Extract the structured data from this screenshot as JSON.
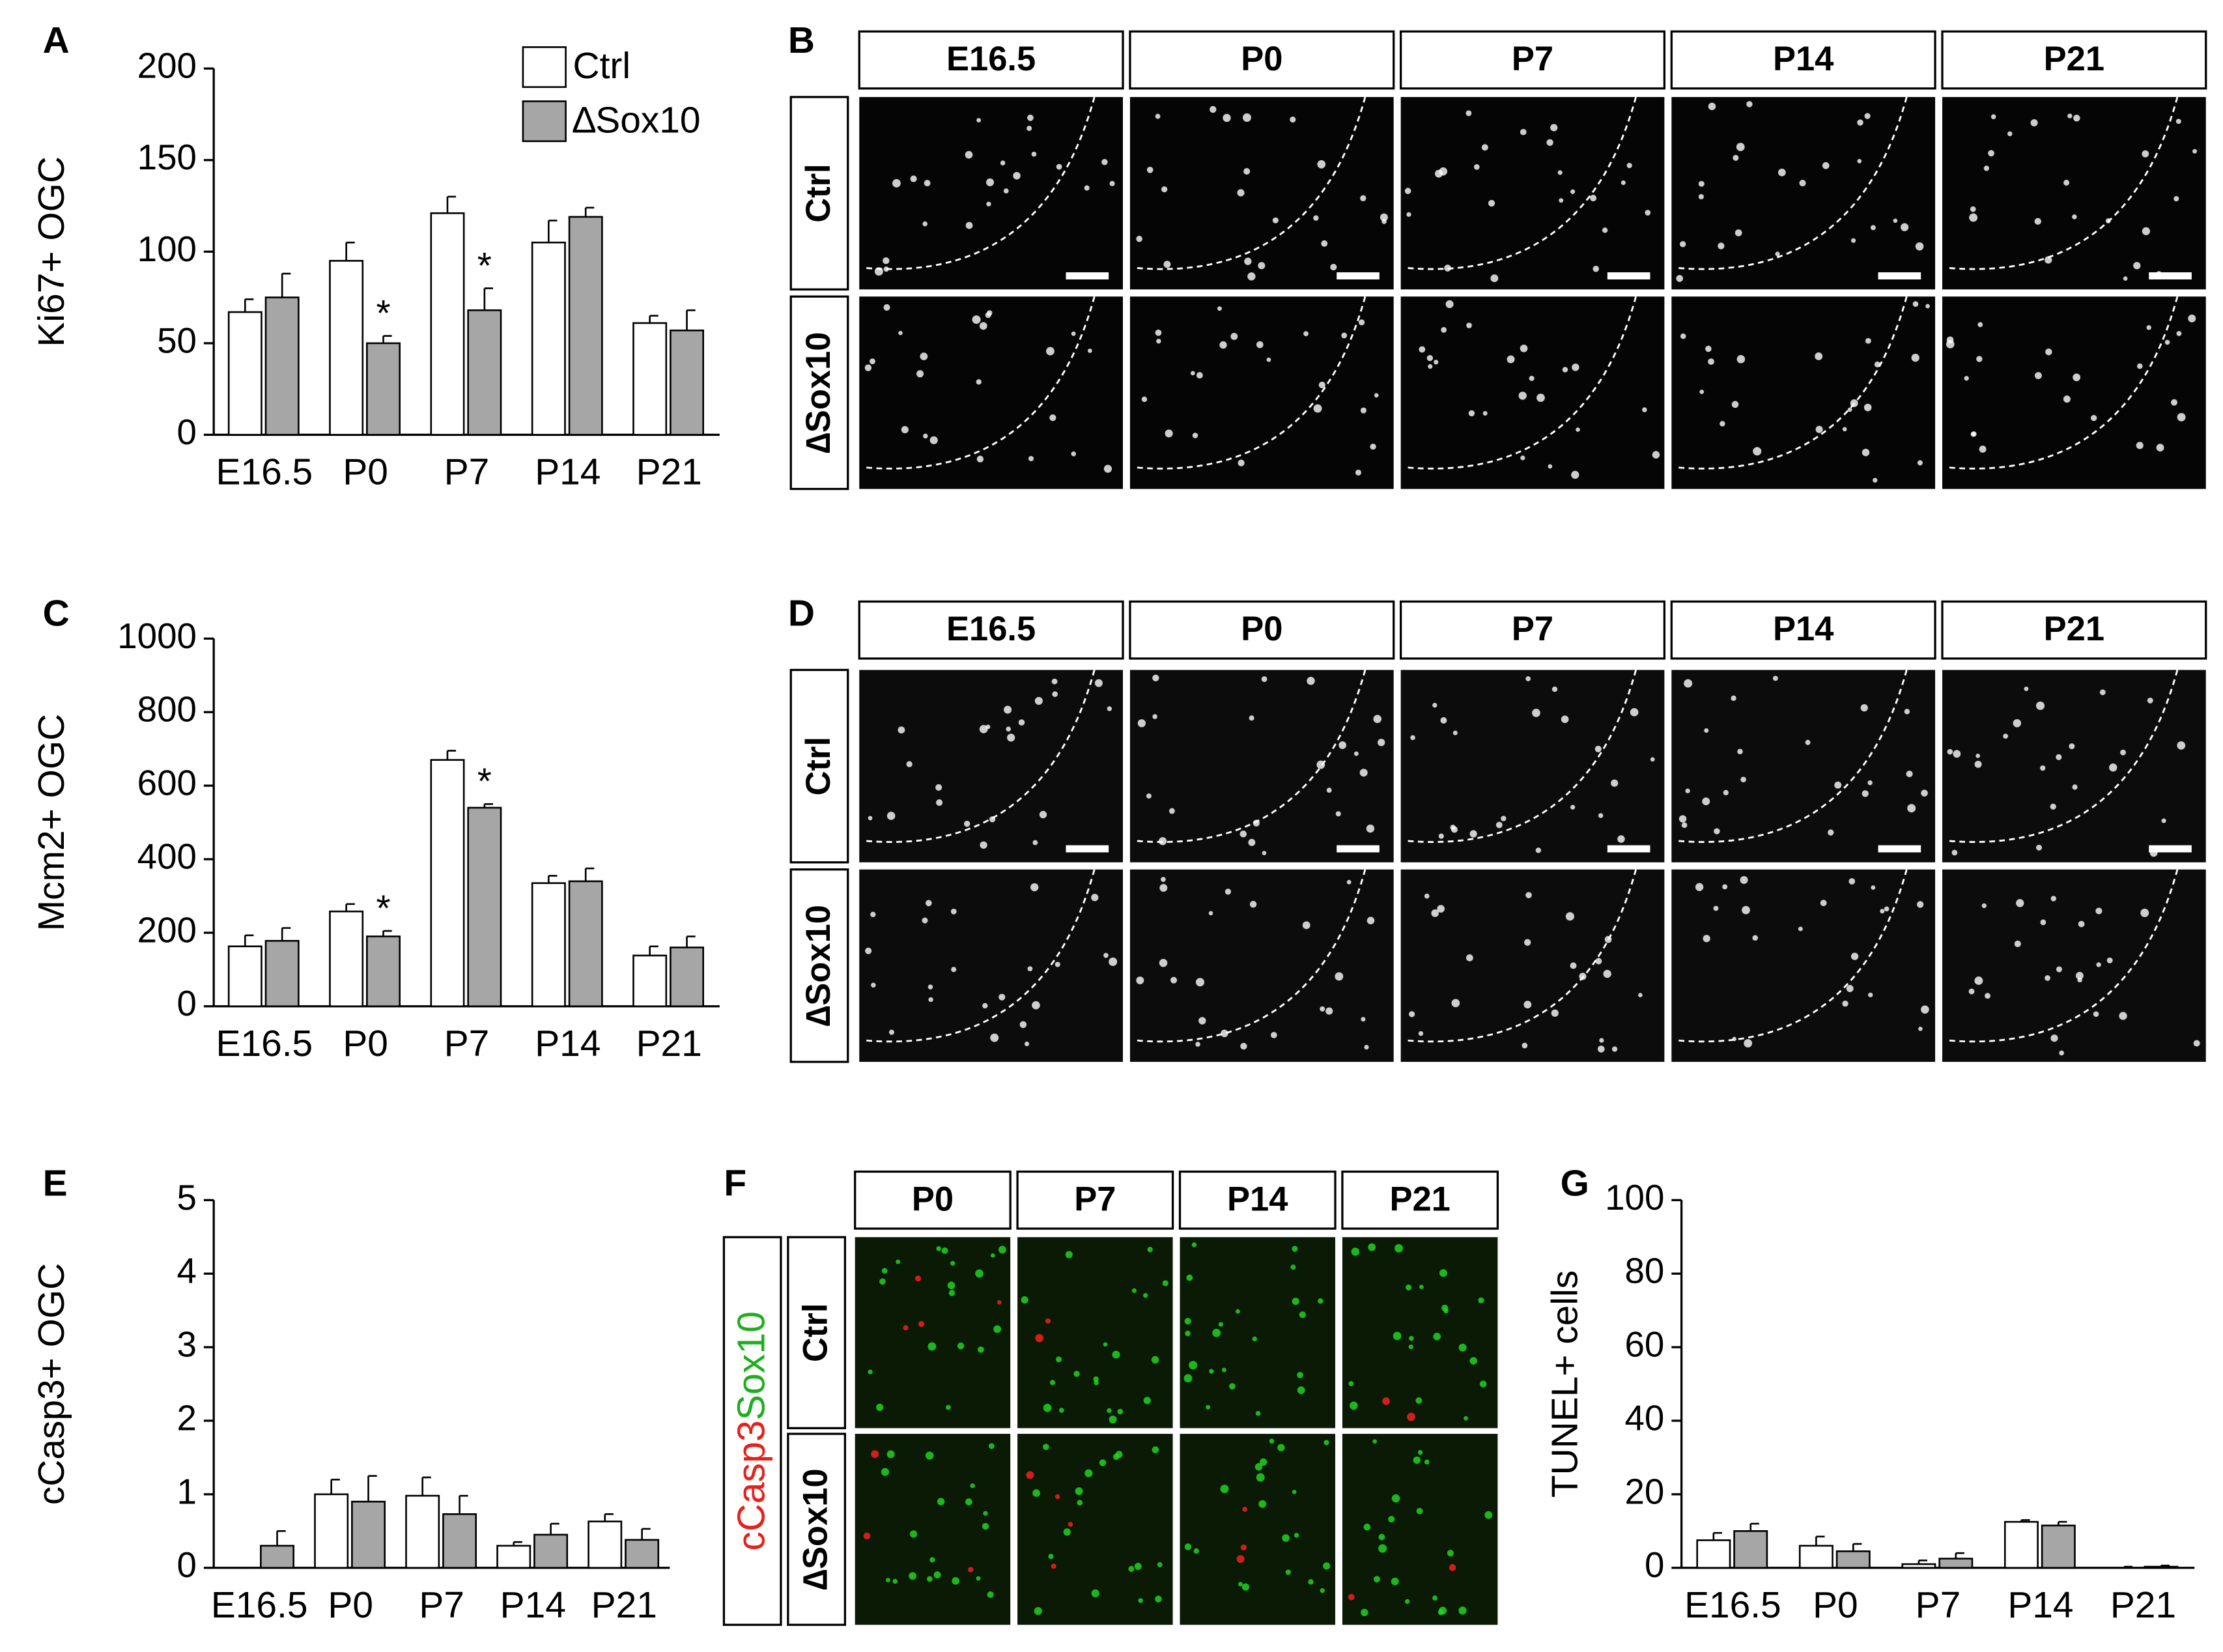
{
  "chart_data": [
    {
      "type": "bar",
      "panel_label": "A",
      "y_label": "Ki67+ OGC",
      "legend": true,
      "categories": [
        "E16.5",
        "P0",
        "P7",
        "P14",
        "P21"
      ],
      "ylim": [
        0,
        200
      ],
      "yticks": [
        0,
        50,
        100,
        150,
        200
      ],
      "series": [
        {
          "name": "Ctrl",
          "color": "#ffffff",
          "values": [
            67,
            95,
            121,
            105,
            61
          ],
          "errors": [
            7,
            10,
            9,
            12,
            4
          ],
          "significance": [
            null,
            null,
            null,
            null,
            null
          ]
        },
        {
          "name": "∆Sox10",
          "color": "#a6a6a6",
          "values": [
            75,
            50,
            68,
            119,
            57
          ],
          "errors": [
            13,
            4,
            12,
            5,
            11
          ],
          "significance": [
            null,
            "*",
            "*",
            null,
            null
          ]
        }
      ]
    },
    {
      "type": "bar",
      "panel_label": "C",
      "y_label": "Mcm2+ OGC",
      "legend": false,
      "categories": [
        "E16.5",
        "P0",
        "P7",
        "P14",
        "P21"
      ],
      "ylim": [
        0,
        1000
      ],
      "yticks": [
        0,
        200,
        400,
        600,
        800,
        1000
      ],
      "series": [
        {
          "name": "Ctrl",
          "color": "#ffffff",
          "values": [
            163,
            258,
            670,
            335,
            138
          ],
          "errors": [
            30,
            20,
            25,
            20,
            25
          ],
          "significance": [
            null,
            null,
            null,
            null,
            null
          ]
        },
        {
          "name": "∆Sox10",
          "color": "#a6a6a6",
          "values": [
            178,
            190,
            540,
            340,
            160
          ],
          "errors": [
            35,
            15,
            10,
            35,
            30
          ],
          "significance": [
            null,
            "*",
            "*",
            null,
            null
          ]
        }
      ]
    },
    {
      "type": "bar",
      "panel_label": "E",
      "y_label": "cCasp3+ OGC",
      "legend": false,
      "categories": [
        "E16.5",
        "P0",
        "P7",
        "P14",
        "P21"
      ],
      "ylim": [
        0,
        5
      ],
      "yticks": [
        0,
        1,
        2,
        3,
        4,
        5
      ],
      "series": [
        {
          "name": "Ctrl",
          "color": "#ffffff",
          "values": [
            0,
            1.0,
            0.98,
            0.3,
            0.63
          ],
          "errors": [
            0,
            0.2,
            0.25,
            0.05,
            0.1
          ],
          "significance": [
            null,
            null,
            null,
            null,
            null
          ]
        },
        {
          "name": "∆Sox10",
          "color": "#a6a6a6",
          "values": [
            0.3,
            0.9,
            0.73,
            0.45,
            0.38
          ],
          "errors": [
            0.2,
            0.35,
            0.25,
            0.15,
            0.15
          ],
          "significance": [
            null,
            null,
            null,
            null,
            null
          ]
        }
      ]
    },
    {
      "type": "bar",
      "panel_label": "G",
      "y_label": "TUNEL+ cells",
      "legend": false,
      "categories": [
        "E16.5",
        "P0",
        "P7",
        "P14",
        "P21"
      ],
      "ylim": [
        0,
        100
      ],
      "yticks": [
        0,
        20,
        40,
        60,
        80,
        100
      ],
      "series": [
        {
          "name": "Ctrl",
          "color": "#ffffff",
          "values": [
            7.5,
            6,
            1,
            12.5,
            0
          ],
          "errors": [
            2,
            2.5,
            1,
            0.5,
            0.3
          ],
          "significance": [
            null,
            null,
            null,
            null,
            null
          ]
        },
        {
          "name": "∆Sox10",
          "color": "#a6a6a6",
          "values": [
            10,
            4.5,
            2.5,
            11.5,
            0.3
          ],
          "errors": [
            2,
            2,
            1.5,
            1,
            0.3
          ],
          "significance": [
            null,
            null,
            null,
            null,
            null
          ]
        }
      ]
    }
  ],
  "image_panels": [
    {
      "panel_label": "B",
      "columns": [
        "E16.5",
        "P0",
        "P7",
        "P14",
        "P21"
      ],
      "rows": [
        "Ctrl",
        "∆Sox10"
      ]
    },
    {
      "panel_label": "D",
      "columns": [
        "E16.5",
        "P0",
        "P7",
        "P14",
        "P21"
      ],
      "rows": [
        "Ctrl",
        "∆Sox10"
      ]
    },
    {
      "panel_label": "F",
      "columns": [
        "P0",
        "P7",
        "P14",
        "P21"
      ],
      "rows": [
        "Ctrl",
        "∆Sox10"
      ],
      "stain_labels": [
        "cCasp3",
        "Sox10"
      ]
    }
  ]
}
